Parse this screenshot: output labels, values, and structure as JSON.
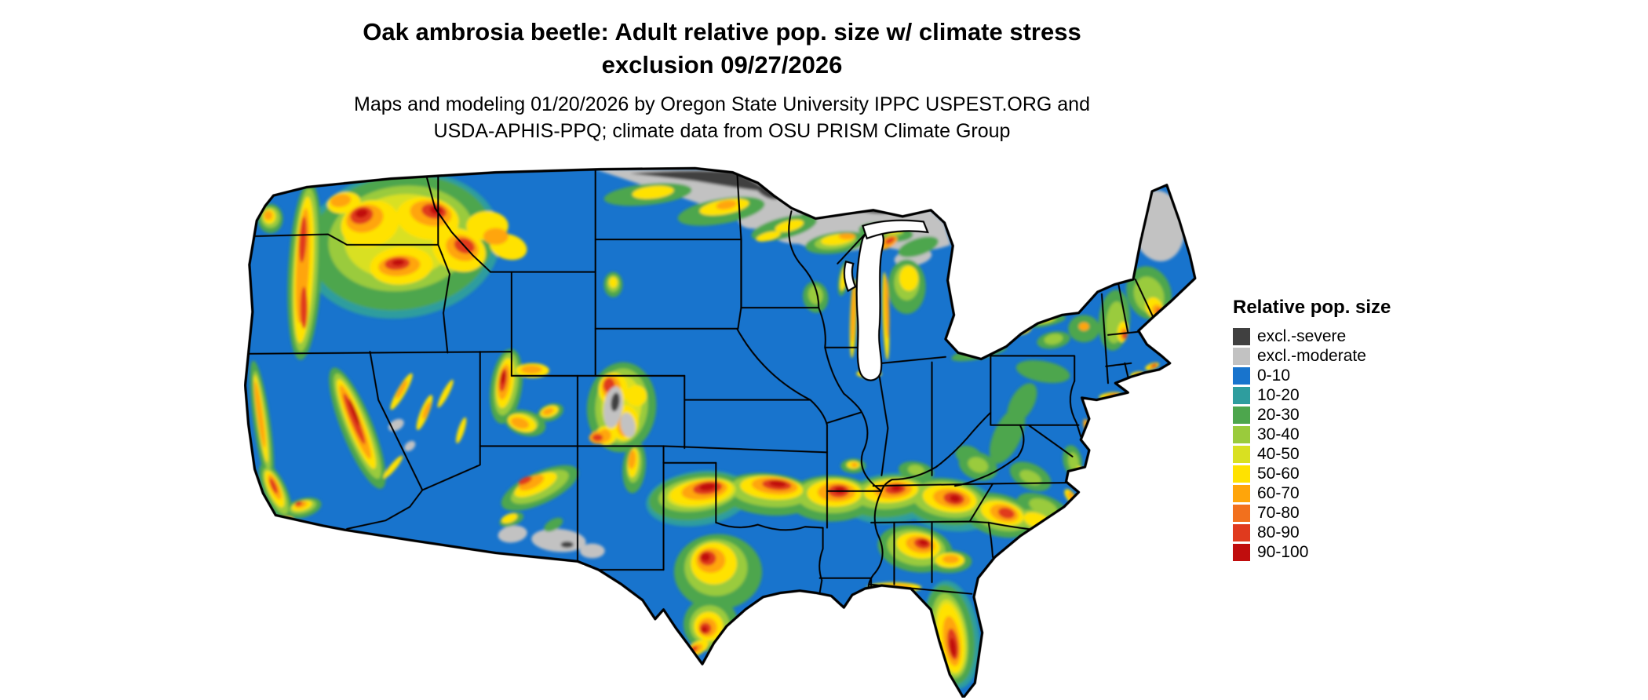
{
  "header": {
    "title_line1": "Oak ambrosia beetle: Adult relative pop. size w/ climate stress",
    "title_line2": "exclusion 09/27/2026",
    "subtitle_line1": "Maps and modeling 01/20/2026 by Oregon State University IPPC USPEST.ORG and",
    "subtitle_line2": "USDA-APHIS-PPQ; climate data from OSU PRISM Climate Group"
  },
  "legend": {
    "title": "Relative pop. size",
    "items": [
      {
        "key": "sev",
        "label": "excl.-severe",
        "color": "#404040"
      },
      {
        "key": "mod",
        "label": "excl.-moderate",
        "color": "#C2C2C2"
      },
      {
        "key": "b0",
        "label": "0-10",
        "color": "#1874CD"
      },
      {
        "key": "b10",
        "label": "10-20",
        "color": "#2E9D9E"
      },
      {
        "key": "b20",
        "label": "20-30",
        "color": "#4DA64D"
      },
      {
        "key": "b30",
        "label": "30-40",
        "color": "#9ACB3C"
      },
      {
        "key": "b40",
        "label": "40-50",
        "color": "#D9E021"
      },
      {
        "key": "b50",
        "label": "50-60",
        "color": "#FFE200"
      },
      {
        "key": "b60",
        "label": "60-70",
        "color": "#FFA50A"
      },
      {
        "key": "b70",
        "label": "70-80",
        "color": "#F2701D"
      },
      {
        "key": "b80",
        "label": "80-90",
        "color": "#E03A1E"
      },
      {
        "key": "b90",
        "label": "90-100",
        "color": "#C00D0D"
      }
    ]
  }
}
